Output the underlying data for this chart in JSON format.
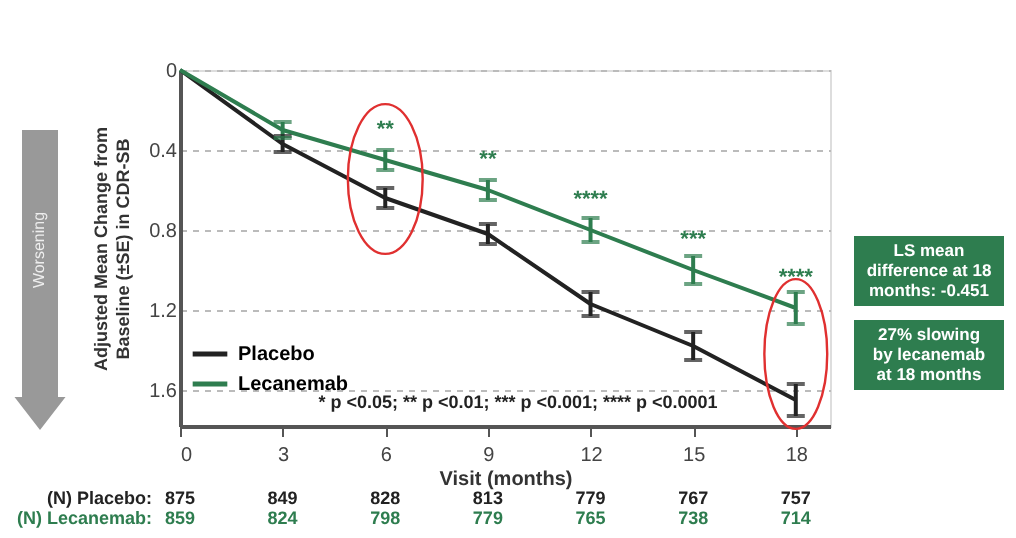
{
  "chart_data": {
    "type": "line",
    "xlabel": "Visit (months)",
    "ylabel": "Adjusted Mean Change from Baseline (±SE) in CDR-SB",
    "x": [
      0,
      3,
      6,
      9,
      12,
      15,
      18
    ],
    "series": [
      {
        "name": "Placebo",
        "color": "#222222",
        "values": [
          0,
          0.37,
          0.64,
          0.82,
          1.17,
          1.38,
          1.65
        ],
        "errors": [
          null,
          0.04,
          0.05,
          0.05,
          0.06,
          0.07,
          0.08
        ]
      },
      {
        "name": "Lecanemab",
        "color": "#2e7d4f",
        "values": [
          0,
          0.3,
          0.45,
          0.6,
          0.8,
          1.0,
          1.19
        ],
        "errors": [
          null,
          0.04,
          0.05,
          0.05,
          0.06,
          0.07,
          0.08
        ]
      }
    ],
    "xlim": [
      0,
      19
    ],
    "xticks": [
      0,
      3,
      6,
      9,
      12,
      15,
      18
    ],
    "ylim": [
      1.78,
      0
    ],
    "yticks": [
      0,
      0.4,
      0.8,
      1.2,
      1.6
    ],
    "grid": "y",
    "legend": "bottom left",
    "marker": "none",
    "line_style": "solid",
    "annotations": [
      "* p <0.05; ** p <0.01; *** p <0.001; **** p <0.0001",
      "Worsening",
      "LS mean difference at 18 months: -0.451",
      "27% slowing by lecanemab at 18 months",
      "(N) Placebo:",
      "875",
      "849",
      "828",
      "813",
      "779",
      "767",
      "757",
      "(N) Lecanemab:",
      "859",
      "824",
      "798",
      "779",
      "765",
      "738",
      "714",
      {
        "text": "**",
        "x": 6,
        "y": 0.45
      },
      {
        "text": "**",
        "x": 9,
        "y": 0.6
      },
      {
        "text": "****",
        "x": 12,
        "y": 0.8
      },
      {
        "text": "***",
        "x": 15,
        "y": 1.0
      },
      {
        "text": "****",
        "x": 18,
        "y": 1.19
      }
    ]
  }
}
